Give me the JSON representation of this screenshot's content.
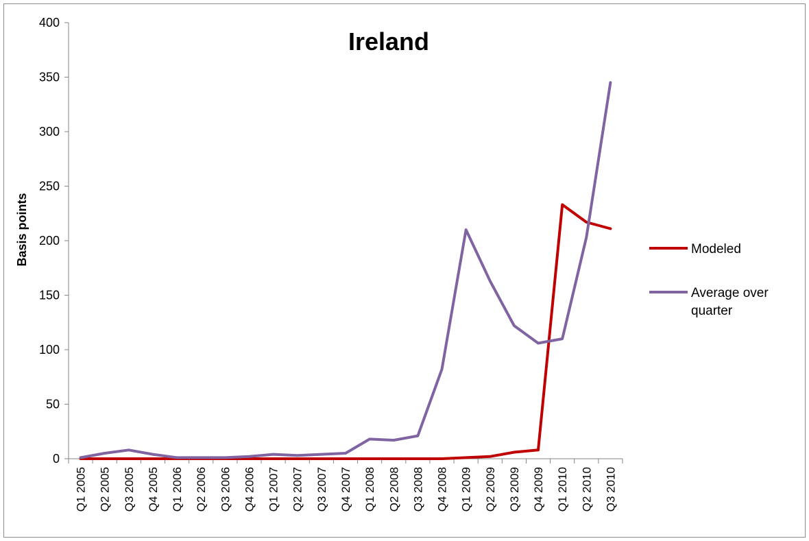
{
  "chart_data": {
    "type": "line",
    "title": "Ireland",
    "xlabel": "",
    "ylabel": "Basis points",
    "ylim": [
      0,
      400
    ],
    "yticks": [
      0,
      50,
      100,
      150,
      200,
      250,
      300,
      350,
      400
    ],
    "grid": false,
    "legend_position": "right",
    "categories": [
      "Q1 2005",
      "Q2 2005",
      "Q3 2005",
      "Q4 2005",
      "Q1 2006",
      "Q2 2006",
      "Q3 2006",
      "Q4 2006",
      "Q1 2007",
      "Q2 2007",
      "Q3 2007",
      "Q4 2007",
      "Q1 2008",
      "Q2 2008",
      "Q3 2008",
      "Q4 2008",
      "Q1 2009",
      "Q2 2009",
      "Q3 2009",
      "Q4 2009",
      "Q1 2010",
      "Q2 2010",
      "Q3 2010"
    ],
    "series": [
      {
        "name": "Modeled",
        "color": "#c00000",
        "values": [
          0,
          0,
          0,
          0,
          0,
          0,
          0,
          0,
          0,
          0,
          0,
          0,
          0,
          0,
          0,
          0,
          1,
          2,
          6,
          8,
          233,
          217,
          211
        ]
      },
      {
        "name": "Average over quarter",
        "color": "#8064a2",
        "values": [
          1,
          5,
          8,
          4,
          1,
          1,
          1,
          2,
          4,
          3,
          4,
          5,
          18,
          17,
          21,
          82,
          210,
          163,
          122,
          106,
          110,
          203,
          345
        ]
      }
    ]
  }
}
